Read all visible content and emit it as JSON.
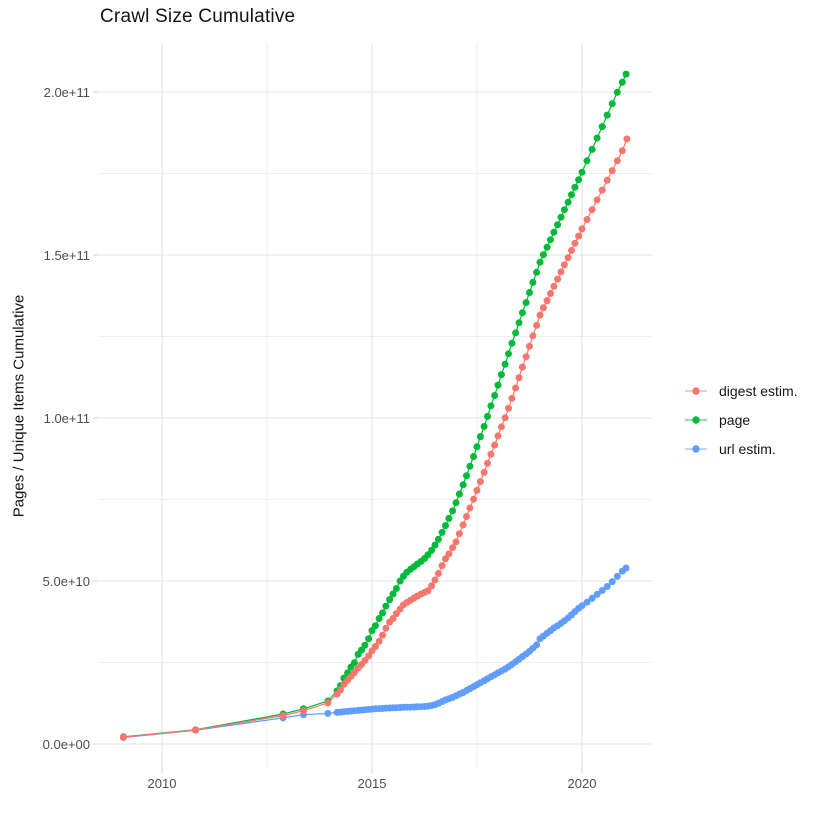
{
  "title": "Crawl Size Cumulative",
  "y_axis": {
    "title": "Pages / Unique Items Cumulative",
    "tick_labels": [
      "0.0e+00",
      "5.0e+10",
      "1.0e+11",
      "1.5e+11",
      "2.0e+11"
    ],
    "tick_values_e9": [
      0,
      50,
      100,
      150,
      200
    ]
  },
  "x_axis": {
    "tick_labels": [
      "2010",
      "2015",
      "2020"
    ],
    "tick_values": [
      2010,
      2015,
      2020
    ]
  },
  "legend": {
    "items": [
      {
        "label": "digest estim.",
        "color": "#F8766D"
      },
      {
        "label": "page",
        "color": "#00BA38"
      },
      {
        "label": "url estim.",
        "color": "#619CFF"
      }
    ]
  },
  "colors": {
    "grid_major": "#e3e3e3",
    "grid_minor": "#efefef",
    "tick_text": "#4d4d4d",
    "title_text": "#141414"
  },
  "chart_data": {
    "type": "line",
    "title": "Crawl Size Cumulative",
    "xlabel": "",
    "ylabel": "Pages / Unique Items Cumulative",
    "x_unit": "year (decimal)",
    "y_unit": "count (multiples of 1e9, i.e. 54 = 5.4e10)",
    "xlim": [
      2008.5,
      2021.65
    ],
    "ylim_e9": [
      -9,
      216
    ],
    "grid": "on",
    "legend_position": "right-center",
    "x_major_ticks": [
      2010,
      2015,
      2020
    ],
    "x_minor_ticks": [
      2012.5,
      2017.5
    ],
    "y_major_ticks_e9": [
      0,
      50,
      100,
      150,
      200
    ],
    "y_minor_ticks_e9": [
      25,
      75,
      125,
      175
    ],
    "series": [
      {
        "name": "digest estim.",
        "color": "#F8766D",
        "points": [
          [
            2009.08,
            2.1
          ],
          [
            2010.8,
            4.3
          ],
          [
            2012.88,
            8.7
          ],
          [
            2013.37,
            10.2
          ],
          [
            2013.95,
            12.6
          ],
          [
            2014.17,
            15.3
          ],
          [
            2014.25,
            16.6
          ],
          [
            2014.33,
            18.3
          ],
          [
            2014.42,
            19.5
          ],
          [
            2014.5,
            20.8
          ],
          [
            2014.58,
            21.9
          ],
          [
            2014.67,
            23.3
          ],
          [
            2014.75,
            24.4
          ],
          [
            2014.83,
            25.6
          ],
          [
            2014.92,
            27.0
          ],
          [
            2015.0,
            28.6
          ],
          [
            2015.08,
            29.9
          ],
          [
            2015.17,
            31.5
          ],
          [
            2015.25,
            33.4
          ],
          [
            2015.33,
            35.5
          ],
          [
            2015.42,
            37.4
          ],
          [
            2015.5,
            38.5
          ],
          [
            2015.58,
            40.0
          ],
          [
            2015.67,
            41.4
          ],
          [
            2015.75,
            42.7
          ],
          [
            2015.83,
            43.4
          ],
          [
            2015.92,
            44.1
          ],
          [
            2016.0,
            44.8
          ],
          [
            2016.08,
            45.4
          ],
          [
            2016.17,
            46.0
          ],
          [
            2016.25,
            46.5
          ],
          [
            2016.33,
            47.0
          ],
          [
            2016.42,
            48.5
          ],
          [
            2016.5,
            50.3
          ],
          [
            2016.58,
            52.3
          ],
          [
            2016.67,
            54.7
          ],
          [
            2016.75,
            56.8
          ],
          [
            2016.83,
            58.3
          ],
          [
            2016.92,
            60.2
          ],
          [
            2017.0,
            62.0
          ],
          [
            2017.08,
            64.5
          ],
          [
            2017.17,
            67.2
          ],
          [
            2017.25,
            69.8
          ],
          [
            2017.33,
            72.4
          ],
          [
            2017.42,
            75.1
          ],
          [
            2017.5,
            77.8
          ],
          [
            2017.58,
            80.5
          ],
          [
            2017.67,
            83.3
          ],
          [
            2017.75,
            86.1
          ],
          [
            2017.83,
            88.9
          ],
          [
            2017.92,
            91.7
          ],
          [
            2018.0,
            94.5
          ],
          [
            2018.08,
            97.3
          ],
          [
            2018.17,
            100.1
          ],
          [
            2018.25,
            103.0
          ],
          [
            2018.33,
            106.0
          ],
          [
            2018.42,
            109.2
          ],
          [
            2018.5,
            112.4
          ],
          [
            2018.58,
            115.6
          ],
          [
            2018.67,
            118.8
          ],
          [
            2018.75,
            122.0
          ],
          [
            2018.83,
            125.2
          ],
          [
            2018.92,
            128.4
          ],
          [
            2019.0,
            131.6
          ],
          [
            2019.08,
            133.8
          ],
          [
            2019.17,
            136.0
          ],
          [
            2019.25,
            138.2
          ],
          [
            2019.33,
            140.4
          ],
          [
            2019.42,
            142.6
          ],
          [
            2019.5,
            144.8
          ],
          [
            2019.58,
            147.0
          ],
          [
            2019.67,
            149.2
          ],
          [
            2019.75,
            151.4
          ],
          [
            2019.83,
            153.6
          ],
          [
            2019.92,
            155.8
          ],
          [
            2020.0,
            158.0
          ],
          [
            2020.12,
            160.9
          ],
          [
            2020.24,
            163.9
          ],
          [
            2020.36,
            166.9
          ],
          [
            2020.48,
            169.9
          ],
          [
            2020.6,
            172.9
          ],
          [
            2020.72,
            175.9
          ],
          [
            2020.84,
            178.9
          ],
          [
            2020.96,
            182.0
          ],
          [
            2021.07,
            185.6
          ]
        ]
      },
      {
        "name": "page",
        "color": "#00BA38",
        "points": [
          [
            2009.08,
            2.2
          ],
          [
            2010.8,
            4.4
          ],
          [
            2012.88,
            9.2
          ],
          [
            2013.37,
            10.8
          ],
          [
            2013.95,
            13.2
          ],
          [
            2014.17,
            16.3
          ],
          [
            2014.25,
            17.9
          ],
          [
            2014.33,
            20.2
          ],
          [
            2014.42,
            21.8
          ],
          [
            2014.5,
            23.6
          ],
          [
            2014.58,
            24.9
          ],
          [
            2014.67,
            27.5
          ],
          [
            2014.75,
            28.8
          ],
          [
            2014.83,
            30.3
          ],
          [
            2014.92,
            32.3
          ],
          [
            2015.0,
            34.8
          ],
          [
            2015.08,
            36.3
          ],
          [
            2015.17,
            38.5
          ],
          [
            2015.25,
            40.2
          ],
          [
            2015.33,
            42.3
          ],
          [
            2015.42,
            44.3
          ],
          [
            2015.5,
            46.0
          ],
          [
            2015.58,
            47.7
          ],
          [
            2015.67,
            50.0
          ],
          [
            2015.75,
            51.5
          ],
          [
            2015.83,
            52.7
          ],
          [
            2015.92,
            53.6
          ],
          [
            2016.0,
            54.4
          ],
          [
            2016.08,
            55.2
          ],
          [
            2016.17,
            56.0
          ],
          [
            2016.25,
            56.9
          ],
          [
            2016.33,
            58.0
          ],
          [
            2016.42,
            59.4
          ],
          [
            2016.5,
            61.0
          ],
          [
            2016.58,
            62.8
          ],
          [
            2016.67,
            64.9
          ],
          [
            2016.75,
            67.0
          ],
          [
            2016.83,
            69.2
          ],
          [
            2016.92,
            71.5
          ],
          [
            2017.0,
            74.0
          ],
          [
            2017.08,
            76.7
          ],
          [
            2017.17,
            79.5
          ],
          [
            2017.25,
            82.3
          ],
          [
            2017.33,
            85.2
          ],
          [
            2017.42,
            88.2
          ],
          [
            2017.5,
            91.2
          ],
          [
            2017.58,
            94.3
          ],
          [
            2017.67,
            97.4
          ],
          [
            2017.75,
            100.5
          ],
          [
            2017.83,
            103.7
          ],
          [
            2017.92,
            106.9
          ],
          [
            2018.0,
            110.1
          ],
          [
            2018.08,
            113.3
          ],
          [
            2018.17,
            116.5
          ],
          [
            2018.25,
            119.7
          ],
          [
            2018.33,
            122.9
          ],
          [
            2018.42,
            126.1
          ],
          [
            2018.5,
            129.2
          ],
          [
            2018.58,
            132.3
          ],
          [
            2018.67,
            135.4
          ],
          [
            2018.75,
            138.5
          ],
          [
            2018.83,
            141.6
          ],
          [
            2018.92,
            144.7
          ],
          [
            2019.0,
            147.8
          ],
          [
            2019.08,
            150.1
          ],
          [
            2019.17,
            152.4
          ],
          [
            2019.25,
            154.7
          ],
          [
            2019.33,
            157.0
          ],
          [
            2019.42,
            159.3
          ],
          [
            2019.5,
            161.6
          ],
          [
            2019.58,
            163.9
          ],
          [
            2019.67,
            166.2
          ],
          [
            2019.75,
            168.5
          ],
          [
            2019.83,
            170.8
          ],
          [
            2019.92,
            173.1
          ],
          [
            2020.0,
            175.4
          ],
          [
            2020.12,
            178.9
          ],
          [
            2020.24,
            182.4
          ],
          [
            2020.36,
            185.9
          ],
          [
            2020.48,
            189.4
          ],
          [
            2020.6,
            192.9
          ],
          [
            2020.72,
            196.4
          ],
          [
            2020.84,
            199.9
          ],
          [
            2020.96,
            203.0
          ],
          [
            2021.05,
            205.5
          ]
        ]
      },
      {
        "name": "url estim.",
        "color": "#619CFF",
        "points": [
          [
            2009.08,
            2.0
          ],
          [
            2010.8,
            4.2
          ],
          [
            2012.88,
            8.0
          ],
          [
            2013.37,
            9.0
          ],
          [
            2013.95,
            9.4
          ],
          [
            2014.17,
            9.7
          ],
          [
            2014.25,
            9.8
          ],
          [
            2014.33,
            9.9
          ],
          [
            2014.42,
            10.0
          ],
          [
            2014.5,
            10.1
          ],
          [
            2014.58,
            10.2
          ],
          [
            2014.67,
            10.3
          ],
          [
            2014.75,
            10.4
          ],
          [
            2014.83,
            10.5
          ],
          [
            2014.92,
            10.6
          ],
          [
            2015.0,
            10.7
          ],
          [
            2015.08,
            10.8
          ],
          [
            2015.17,
            10.85
          ],
          [
            2015.25,
            10.9
          ],
          [
            2015.33,
            11.0
          ],
          [
            2015.42,
            11.05
          ],
          [
            2015.5,
            11.1
          ],
          [
            2015.58,
            11.15
          ],
          [
            2015.67,
            11.2
          ],
          [
            2015.75,
            11.25
          ],
          [
            2015.83,
            11.3
          ],
          [
            2015.92,
            11.3
          ],
          [
            2016.0,
            11.35
          ],
          [
            2016.08,
            11.4
          ],
          [
            2016.17,
            11.45
          ],
          [
            2016.25,
            11.5
          ],
          [
            2016.33,
            11.6
          ],
          [
            2016.42,
            11.8
          ],
          [
            2016.5,
            12.1
          ],
          [
            2016.58,
            12.5
          ],
          [
            2016.67,
            13.0
          ],
          [
            2016.75,
            13.5
          ],
          [
            2016.83,
            13.9
          ],
          [
            2016.92,
            14.3
          ],
          [
            2017.0,
            14.8
          ],
          [
            2017.08,
            15.3
          ],
          [
            2017.17,
            15.8
          ],
          [
            2017.25,
            16.4
          ],
          [
            2017.33,
            17.0
          ],
          [
            2017.42,
            17.6
          ],
          [
            2017.5,
            18.2
          ],
          [
            2017.58,
            18.8
          ],
          [
            2017.67,
            19.4
          ],
          [
            2017.75,
            20.0
          ],
          [
            2017.83,
            20.6
          ],
          [
            2017.92,
            21.2
          ],
          [
            2018.0,
            21.8
          ],
          [
            2018.08,
            22.4
          ],
          [
            2018.17,
            23.0
          ],
          [
            2018.25,
            23.7
          ],
          [
            2018.33,
            24.4
          ],
          [
            2018.42,
            25.2
          ],
          [
            2018.5,
            26.0
          ],
          [
            2018.58,
            26.8
          ],
          [
            2018.67,
            27.6
          ],
          [
            2018.75,
            28.4
          ],
          [
            2018.83,
            29.4
          ],
          [
            2018.92,
            30.4
          ],
          [
            2019.0,
            32.3
          ],
          [
            2019.08,
            33.1
          ],
          [
            2019.17,
            34.0
          ],
          [
            2019.25,
            34.8
          ],
          [
            2019.33,
            35.6
          ],
          [
            2019.42,
            36.3
          ],
          [
            2019.5,
            37.0
          ],
          [
            2019.58,
            37.8
          ],
          [
            2019.67,
            38.7
          ],
          [
            2019.75,
            39.6
          ],
          [
            2019.83,
            40.6
          ],
          [
            2019.92,
            41.6
          ],
          [
            2020.0,
            42.4
          ],
          [
            2020.12,
            43.5
          ],
          [
            2020.24,
            44.7
          ],
          [
            2020.36,
            45.9
          ],
          [
            2020.48,
            47.1
          ],
          [
            2020.6,
            48.3
          ],
          [
            2020.72,
            49.8
          ],
          [
            2020.84,
            51.4
          ],
          [
            2020.96,
            53.0
          ],
          [
            2021.05,
            54.0
          ]
        ]
      }
    ]
  }
}
